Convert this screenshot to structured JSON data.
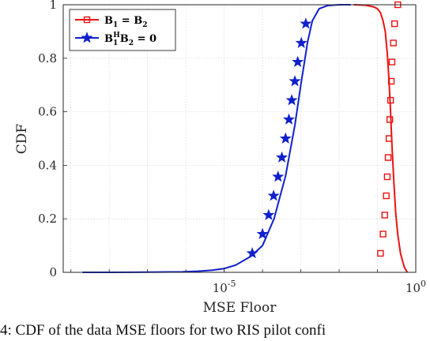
{
  "chart_data": {
    "type": "line",
    "xlabel": "MSE Floor",
    "ylabel": "CDF",
    "xscale": "log",
    "x_ticks": [
      {
        "value": 1e-05,
        "label": "10",
        "exp": "-5"
      },
      {
        "value": 1,
        "label": "10",
        "exp": "0"
      }
    ],
    "y_ticks": [
      "0",
      "0.2",
      "0.4",
      "0.6",
      "0.8",
      "1"
    ],
    "ylim": [
      0,
      1
    ],
    "grid": true,
    "legend_position": "top-left",
    "colors": {
      "red": "#ee1111",
      "blue": "#1020cc"
    },
    "series": [
      {
        "name": "B1 = B2",
        "name_parts": {
          "a": "B",
          "a_sub": "1",
          "eq": " = ",
          "b": "B",
          "b_sub": "2"
        },
        "color": "#ee1111",
        "marker": "square",
        "x": [
          0.024,
          0.05,
          0.08,
          0.1,
          0.12,
          0.14,
          0.16,
          0.18,
          0.2,
          0.22,
          0.24,
          0.27,
          0.3,
          0.34,
          0.4,
          0.5,
          0.6
        ],
        "y": [
          1.0,
          0.998,
          0.992,
          0.985,
          0.97,
          0.94,
          0.9,
          0.82,
          0.72,
          0.6,
          0.47,
          0.33,
          0.22,
          0.14,
          0.07,
          0.02,
          0.0
        ],
        "marker_y": [
          0.071,
          0.143,
          0.214,
          0.286,
          0.357,
          0.429,
          0.5,
          0.571,
          0.643,
          0.714,
          0.786,
          0.857,
          0.929,
          1.0
        ],
        "marker_x": [
          0.12,
          0.14,
          0.155,
          0.17,
          0.18,
          0.19,
          0.2,
          0.21,
          0.22,
          0.23,
          0.24,
          0.26,
          0.28,
          0.34
        ]
      },
      {
        "name": "B1^H B2 = 0",
        "name_parts": {
          "a": "B",
          "a_sub": "1",
          "a_sup": "H",
          "b": "B",
          "b_sub": "2",
          "eq": " = ",
          "rhs": "0"
        },
        "color": "#1020cc",
        "marker": "star",
        "x": [
          2e-09,
          1e-08,
          5e-08,
          2e-07,
          8e-07,
          2e-06,
          5e-06,
          1e-05,
          2e-05,
          5e-05,
          0.0001,
          0.0002,
          0.0004,
          0.0007,
          0.001,
          0.0015,
          0.002,
          0.003,
          0.005,
          0.01,
          0.02
        ],
        "y": [
          0.0,
          0.0,
          0.0005,
          0.001,
          0.002,
          0.004,
          0.008,
          0.014,
          0.027,
          0.06,
          0.1,
          0.2,
          0.36,
          0.55,
          0.7,
          0.86,
          0.94,
          0.985,
          0.997,
          1.0,
          1.0
        ],
        "marker_y": [
          0.071,
          0.143,
          0.214,
          0.286,
          0.357,
          0.429,
          0.5,
          0.571,
          0.643,
          0.714,
          0.786,
          0.857,
          0.929
        ],
        "marker_x": [
          5.4e-05,
          0.0001,
          0.000145,
          0.000195,
          0.000255,
          0.00032,
          0.0004,
          0.00049,
          0.00058,
          0.0007,
          0.00083,
          0.00103,
          0.00135
        ]
      }
    ]
  },
  "caption": {
    "text": "4: CDF of the data MSE floors for two RIS pilot confi"
  }
}
